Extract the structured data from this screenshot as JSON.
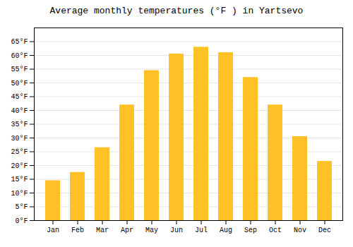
{
  "chart_data": {
    "type": "bar",
    "title": "Average monthly temperatures (°F ) in Yartsevo",
    "categories": [
      "Jan",
      "Feb",
      "Mar",
      "Apr",
      "May",
      "Jun",
      "Jul",
      "Aug",
      "Sep",
      "Oct",
      "Nov",
      "Dec"
    ],
    "values": [
      14.5,
      17.5,
      26.5,
      42.0,
      54.5,
      60.5,
      63.0,
      61.0,
      52.0,
      42.0,
      30.5,
      21.5
    ],
    "color": "#FFC125",
    "ylim": [
      0,
      70
    ],
    "yticks": [
      {
        "value": 0,
        "label": "0°F"
      },
      {
        "value": 5,
        "label": "5°F"
      },
      {
        "value": 10,
        "label": "10°F"
      },
      {
        "value": 15,
        "label": "15°F"
      },
      {
        "value": 20,
        "label": "20°F"
      },
      {
        "value": 25,
        "label": "25°F"
      },
      {
        "value": 30,
        "label": "30°F"
      },
      {
        "value": 35,
        "label": "35°F"
      },
      {
        "value": 40,
        "label": "40°F"
      },
      {
        "value": 45,
        "label": "45°F"
      },
      {
        "value": 50,
        "label": "50°F"
      },
      {
        "value": 55,
        "label": "55°F"
      },
      {
        "value": 60,
        "label": "60°F"
      },
      {
        "value": 65,
        "label": "65°F"
      }
    ],
    "grid": true
  }
}
